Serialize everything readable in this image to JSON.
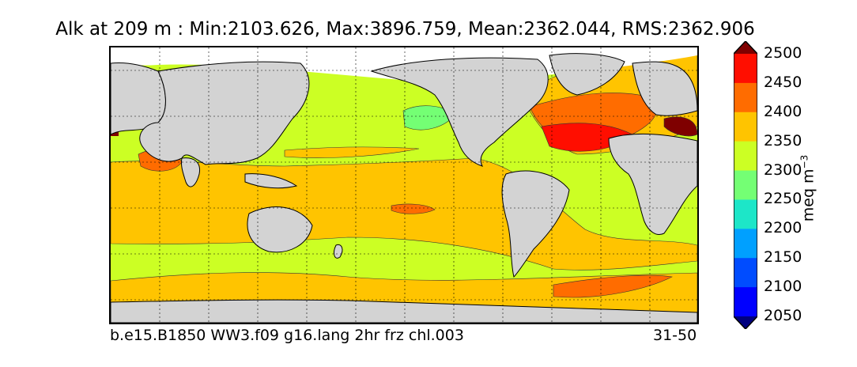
{
  "title": "Alk at 209 m : Min:2103.626, Max:3896.759, Mean:2362.044, RMS:2362.906",
  "caption_left": "b.e15.B1850 WW3.f09 g16.lang 2hr frz chl.003",
  "caption_right": "31-50",
  "colorbar": {
    "unit_text": "meq m",
    "unit_exp": "−3",
    "ticks": [
      "2050",
      "2100",
      "2150",
      "2200",
      "2250",
      "2300",
      "2350",
      "2400",
      "2450",
      "2500"
    ],
    "colors": [
      "#00007f",
      "#0000ff",
      "#004cff",
      "#00a0ff",
      "#1de6c8",
      "#74ff74",
      "#ccff24",
      "#ffc400",
      "#ff6c00",
      "#ff0e00",
      "#7f0000"
    ]
  },
  "map": {
    "land_color": "#d3d3d3",
    "ice_color": "#ffffff",
    "grid": true
  }
}
